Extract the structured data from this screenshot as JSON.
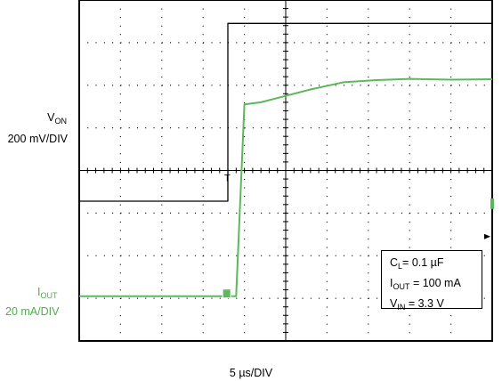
{
  "chart_data": {
    "type": "line",
    "xlabel": "5 µs/DIV",
    "x_unit": "µs",
    "x_per_div": 5,
    "xlim": [
      0,
      50
    ],
    "grid": true,
    "channels": [
      {
        "name": "V",
        "name_sub": "ON",
        "scale_label": "200 mV/DIV",
        "color": "#000000",
        "points": [
          [
            0,
            -0.72
          ],
          [
            18.0,
            -0.72
          ],
          [
            18.0,
            3.45
          ],
          [
            18.5,
            3.45
          ],
          [
            50,
            3.45
          ]
        ]
      },
      {
        "name": "I",
        "name_sub": "OUT",
        "scale_label": "20 mA/DIV",
        "color": "#5cb85c",
        "points": [
          [
            0,
            -2.95
          ],
          [
            17.8,
            -2.95
          ],
          [
            18.2,
            -2.95
          ],
          [
            18.6,
            -2.95
          ],
          [
            19.0,
            -2.95
          ],
          [
            20.0,
            1.55
          ],
          [
            22,
            1.6
          ],
          [
            25,
            1.75
          ],
          [
            28,
            1.9
          ],
          [
            32,
            2.07
          ],
          [
            36,
            2.12
          ],
          [
            40,
            2.15
          ],
          [
            45,
            2.13
          ],
          [
            50,
            2.14
          ]
        ]
      }
    ],
    "trigger_marker": "T",
    "legend": {
      "position": "bottom-right",
      "lines": [
        {
          "prefix": "C",
          "sub": "L",
          "suffix": "= 0.1 µF"
        },
        {
          "prefix": "I",
          "sub": "OUT",
          "suffix": " = 100 mA"
        },
        {
          "prefix": "V",
          "sub": "IN",
          "suffix": " = 3.3 V"
        }
      ]
    }
  }
}
